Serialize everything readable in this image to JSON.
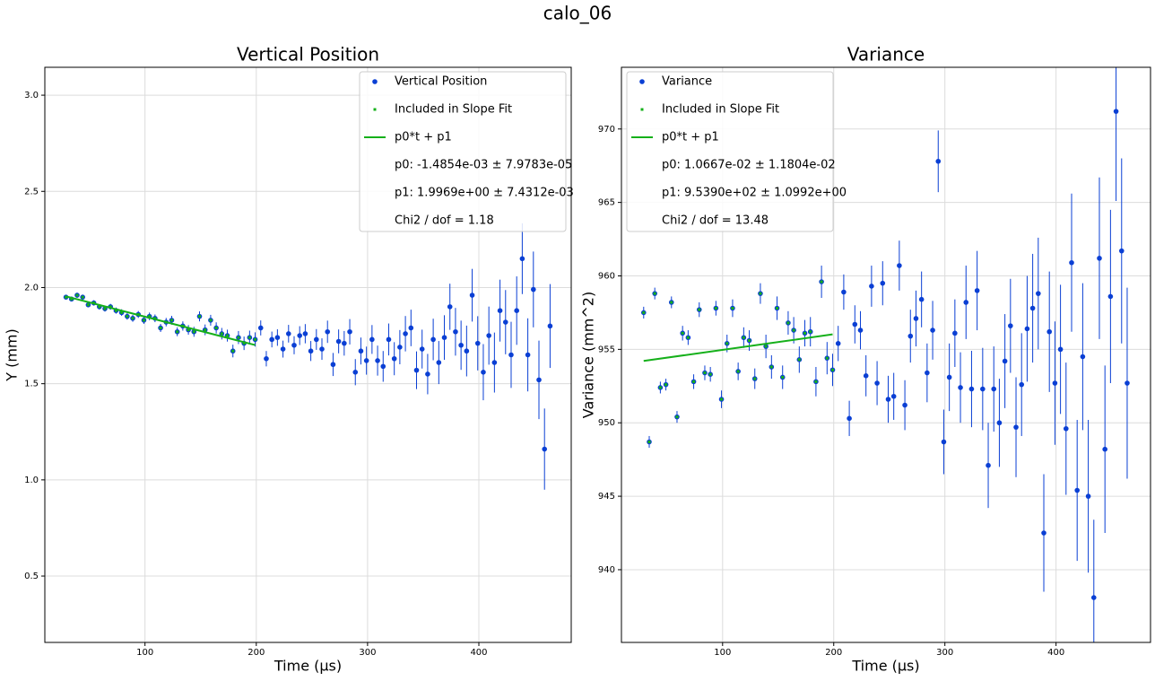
{
  "title": "calo_06",
  "chart_data": [
    {
      "type": "scatter",
      "title": "Vertical Position",
      "xlabel": "Time (µs)",
      "ylabel": "Y (mm)",
      "xlim": [
        10,
        483
      ],
      "ylim": [
        0.155,
        3.145
      ],
      "xticks": [
        100,
        200,
        300,
        400
      ],
      "yticks": [
        0.5,
        {
          "value": 1,
          "label": "1.0"
        },
        1.5,
        {
          "value": 2,
          "label": "2.0"
        },
        2.5,
        {
          "value": 3,
          "label": "3.0"
        }
      ],
      "grid": true,
      "legend": "upper right",
      "series": [
        {
          "name": "Vertical Position",
          "color": "#0a3fd4",
          "x": [
            29,
            34,
            39,
            44,
            49,
            54,
            59,
            64,
            69,
            74,
            79,
            84,
            89,
            94,
            99,
            104,
            109,
            114,
            119,
            124,
            129,
            134,
            139,
            144,
            149,
            154,
            159,
            164,
            169,
            174,
            179,
            184,
            189,
            194,
            199,
            204,
            209,
            214,
            219,
            224,
            229,
            234,
            239,
            244,
            249,
            254,
            259,
            264,
            269,
            274,
            279,
            284,
            289,
            294,
            299,
            304,
            309,
            314,
            319,
            324,
            329,
            334,
            339,
            344,
            349,
            354,
            359,
            364,
            369,
            374,
            379,
            384,
            389,
            394,
            399,
            404,
            409,
            414,
            419,
            424,
            429,
            434,
            439,
            444,
            449,
            454,
            459,
            464
          ],
          "values": [
            1.95,
            1.94,
            1.96,
            1.95,
            1.91,
            1.92,
            1.9,
            1.89,
            1.9,
            1.88,
            1.87,
            1.85,
            1.84,
            1.86,
            1.83,
            1.85,
            1.84,
            1.79,
            1.82,
            1.83,
            1.77,
            1.8,
            1.78,
            1.77,
            1.85,
            1.78,
            1.83,
            1.79,
            1.76,
            1.75,
            1.67,
            1.74,
            1.71,
            1.74,
            1.73,
            1.79,
            1.63,
            1.73,
            1.74,
            1.68,
            1.76,
            1.7,
            1.75,
            1.76,
            1.67,
            1.73,
            1.68,
            1.77,
            1.6,
            1.72,
            1.71,
            1.77,
            1.56,
            1.67,
            1.62,
            1.73,
            1.62,
            1.59,
            1.73,
            1.63,
            1.69,
            1.76,
            1.79,
            1.57,
            1.68,
            1.55,
            1.73,
            1.61,
            1.74,
            1.9,
            1.77,
            1.7,
            1.67,
            1.96,
            1.71,
            1.56,
            1.75,
            1.61,
            1.88,
            1.82,
            1.65,
            1.88,
            2.15,
            1.65,
            1.99,
            1.52,
            1.16,
            1.8
          ],
          "errors": [
            0.012,
            0.012,
            0.013,
            0.013,
            0.013,
            0.014,
            0.014,
            0.015,
            0.015,
            0.016,
            0.017,
            0.017,
            0.018,
            0.018,
            0.019,
            0.02,
            0.02,
            0.021,
            0.022,
            0.023,
            0.023,
            0.024,
            0.025,
            0.026,
            0.026,
            0.028,
            0.028,
            0.029,
            0.03,
            0.031,
            0.033,
            0.034,
            0.035,
            0.036,
            0.037,
            0.039,
            0.04,
            0.041,
            0.043,
            0.044,
            0.046,
            0.047,
            0.049,
            0.05,
            0.052,
            0.054,
            0.056,
            0.058,
            0.06,
            0.062,
            0.064,
            0.066,
            0.068,
            0.07,
            0.073,
            0.075,
            0.078,
            0.08,
            0.083,
            0.086,
            0.089,
            0.092,
            0.095,
            0.098,
            0.101,
            0.105,
            0.108,
            0.112,
            0.116,
            0.12,
            0.124,
            0.128,
            0.132,
            0.137,
            0.141,
            0.146,
            0.151,
            0.156,
            0.161,
            0.167,
            0.172,
            0.178,
            0.184,
            0.19,
            0.197,
            0.204,
            0.211,
            0.218
          ]
        },
        {
          "name": "Included in Slope Fit",
          "color": "#15b01a",
          "x": [
            29,
            34,
            39,
            44,
            49,
            54,
            59,
            64,
            69,
            74,
            79,
            84,
            89,
            94,
            99,
            104,
            109,
            114,
            119,
            124,
            129,
            134,
            139,
            144,
            149,
            154,
            159,
            164,
            169,
            174,
            179,
            184,
            189,
            194,
            199
          ],
          "values": [
            1.95,
            1.94,
            1.96,
            1.95,
            1.91,
            1.92,
            1.9,
            1.89,
            1.9,
            1.88,
            1.87,
            1.85,
            1.84,
            1.86,
            1.83,
            1.85,
            1.84,
            1.79,
            1.82,
            1.83,
            1.77,
            1.8,
            1.78,
            1.77,
            1.85,
            1.78,
            1.83,
            1.79,
            1.76,
            1.75,
            1.67,
            1.74,
            1.71,
            1.74,
            1.73
          ]
        },
        {
          "name": "p0*t + p1",
          "color": "#15b01a",
          "type": "line",
          "x": [
            29,
            199
          ],
          "values": [
            1.954,
            1.701
          ]
        }
      ],
      "legend_notes": [
        "p0: -1.4854e-03 ± 7.9783e-05",
        "p1: 1.9969e+00 ± 7.4312e-03",
        "Chi2 / dof = 1.18"
      ]
    },
    {
      "type": "scatter",
      "title": "Variance",
      "xlabel": "Time (µs)",
      "ylabel": "Variance (mm^2)",
      "xlim": [
        9,
        485
      ],
      "ylim": [
        935.05,
        974.2
      ],
      "xticks": [
        100,
        200,
        300,
        400
      ],
      "yticks": [
        940,
        945,
        950,
        955,
        960,
        965,
        970
      ],
      "grid": true,
      "legend": "upper left",
      "series": [
        {
          "name": "Variance",
          "color": "#0a3fd4",
          "x": [
            29,
            34,
            39,
            44,
            49,
            54,
            59,
            64,
            69,
            74,
            79,
            84,
            89,
            94,
            99,
            104,
            109,
            114,
            119,
            124,
            129,
            134,
            139,
            144,
            149,
            154,
            159,
            164,
            169,
            174,
            179,
            184,
            189,
            194,
            199,
            204,
            209,
            214,
            219,
            224,
            229,
            234,
            239,
            244,
            249,
            254,
            259,
            264,
            269,
            274,
            279,
            284,
            289,
            294,
            299,
            304,
            309,
            314,
            319,
            324,
            329,
            334,
            339,
            344,
            349,
            354,
            359,
            364,
            369,
            374,
            379,
            384,
            389,
            394,
            399,
            404,
            409,
            414,
            419,
            424,
            429,
            434,
            439,
            444,
            449,
            454,
            459,
            464
          ],
          "values": [
            957.5,
            948.7,
            958.8,
            952.4,
            952.6,
            958.2,
            950.4,
            956.1,
            955.8,
            952.8,
            957.7,
            953.4,
            953.3,
            957.8,
            951.6,
            955.4,
            957.8,
            953.5,
            955.8,
            955.6,
            953.0,
            958.8,
            955.2,
            953.8,
            957.8,
            953.1,
            956.8,
            956.3,
            954.3,
            956.1,
            956.2,
            952.8,
            959.6,
            954.4,
            953.6,
            955.4,
            958.9,
            950.3,
            956.7,
            956.3,
            953.2,
            959.3,
            952.7,
            959.5,
            951.6,
            951.8,
            960.7,
            951.2,
            955.9,
            957.1,
            958.4,
            953.4,
            956.3,
            967.8,
            948.7,
            953.1,
            956.1,
            952.4,
            958.2,
            952.3,
            959.0,
            952.3,
            947.1,
            952.3,
            950.0,
            954.2,
            956.6,
            949.7,
            952.6,
            956.4,
            957.8,
            958.8,
            942.5,
            956.2,
            952.7,
            955.0,
            949.6,
            960.9,
            945.4,
            954.5,
            945.0,
            938.1,
            961.2,
            948.2,
            958.6,
            971.2,
            961.7,
            952.7
          ],
          "errors": [
            0.4,
            0.4,
            0.4,
            0.4,
            0.4,
            0.4,
            0.4,
            0.5,
            0.5,
            0.5,
            0.5,
            0.5,
            0.5,
            0.5,
            0.6,
            0.6,
            0.6,
            0.6,
            0.7,
            0.7,
            0.7,
            0.7,
            0.8,
            0.8,
            0.8,
            0.8,
            0.8,
            0.9,
            0.9,
            0.9,
            1.0,
            1.0,
            1.1,
            1.1,
            1.1,
            1.2,
            1.2,
            1.2,
            1.3,
            1.3,
            1.4,
            1.4,
            1.5,
            1.5,
            1.6,
            1.6,
            1.7,
            1.7,
            1.8,
            1.9,
            1.9,
            2.0,
            2.0,
            2.1,
            2.2,
            2.3,
            2.3,
            2.4,
            2.5,
            2.6,
            2.7,
            2.8,
            2.9,
            2.9,
            3.0,
            3.2,
            3.2,
            3.4,
            3.5,
            3.6,
            3.7,
            3.8,
            4.0,
            4.1,
            4.2,
            4.4,
            4.5,
            4.7,
            4.8,
            5.0,
            5.2,
            5.3,
            5.5,
            5.7,
            5.9,
            6.1,
            6.3,
            6.5
          ]
        },
        {
          "name": "Included in Slope Fit",
          "color": "#15b01a",
          "x": [
            29,
            34,
            39,
            44,
            49,
            54,
            59,
            64,
            69,
            74,
            79,
            84,
            89,
            94,
            99,
            104,
            109,
            114,
            119,
            124,
            129,
            134,
            139,
            144,
            149,
            154,
            159,
            164,
            169,
            174,
            179,
            184,
            189,
            194,
            199
          ],
          "values": [
            957.5,
            948.7,
            958.8,
            952.4,
            952.6,
            958.2,
            950.4,
            956.1,
            955.8,
            952.8,
            957.7,
            953.4,
            953.3,
            957.8,
            951.6,
            955.4,
            957.8,
            953.5,
            955.8,
            955.6,
            953.0,
            958.8,
            955.2,
            953.8,
            957.8,
            953.1,
            956.8,
            956.3,
            954.3,
            956.1,
            956.2,
            952.8,
            959.6,
            954.4,
            953.6
          ]
        },
        {
          "name": "p0*t + p1",
          "color": "#15b01a",
          "type": "line",
          "x": [
            29,
            199
          ],
          "values": [
            954.21,
            956.02
          ]
        }
      ],
      "legend_notes": [
        "p0: 1.0667e-02 ± 1.1804e-02",
        "p1: 9.5390e+02 ± 1.0992e+00",
        "Chi2 / dof = 13.48"
      ]
    }
  ]
}
